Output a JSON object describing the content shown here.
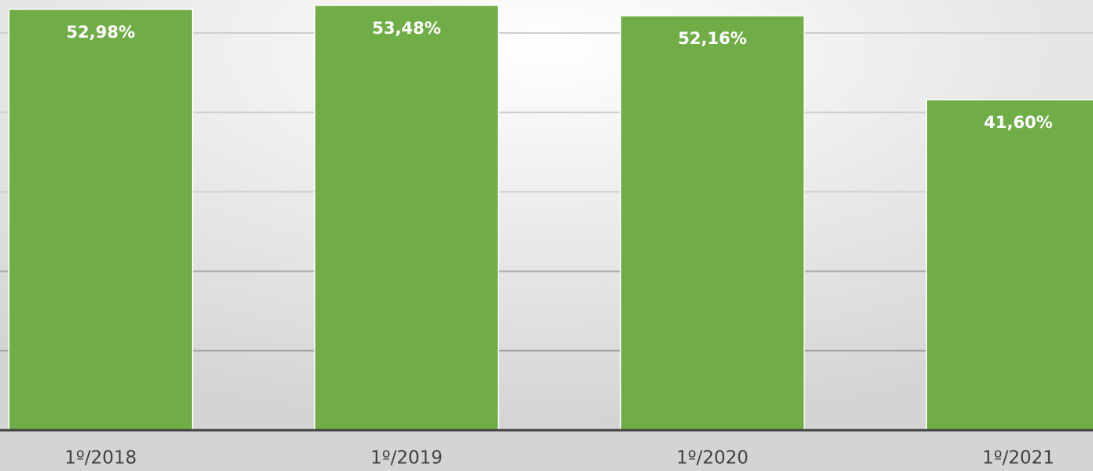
{
  "chart_data": {
    "type": "bar",
    "categories": [
      "1º/2018",
      "1º/2019",
      "1º/2020",
      "1º/2021"
    ],
    "values": [
      52.98,
      53.48,
      52.16,
      41.6
    ],
    "value_labels": [
      "52,98%",
      "53,48%",
      "52,16%",
      "41,60%"
    ],
    "color": "#70ad47",
    "ylim": [
      0,
      54.15
    ],
    "yticks": [
      0,
      10,
      20,
      30,
      40,
      50
    ],
    "grid": true
  }
}
